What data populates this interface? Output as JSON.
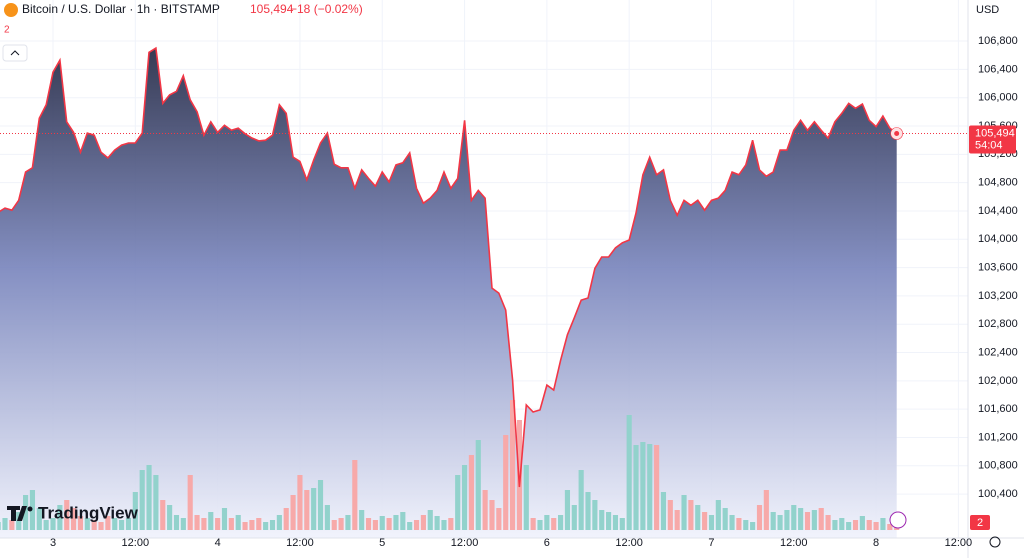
{
  "chart_data": {
    "type": "area",
    "title": "Bitcoin / U.S. Dollar · 1h · BITSTAMP",
    "last_price": "105,494",
    "change": "−18 (−0.02%)",
    "indicator_count": "2",
    "countdown": "54:04",
    "currency": "USD",
    "alert_count": "2",
    "brand": "TradingView",
    "x": [
      -8,
      -7,
      -6,
      -5,
      -4,
      -3,
      -2,
      -1,
      0,
      1,
      2,
      3,
      4,
      5,
      6,
      7,
      8,
      9,
      10,
      11,
      12,
      13,
      14,
      15,
      16,
      17,
      18,
      19,
      20,
      21,
      22,
      23,
      24,
      25,
      26,
      27,
      28,
      29,
      30,
      31,
      32,
      33,
      34,
      35,
      36,
      37,
      38,
      39,
      40,
      41,
      42,
      43,
      44,
      45,
      46,
      47,
      48,
      49,
      50,
      51,
      52,
      53,
      54,
      55,
      56,
      57,
      58,
      59,
      60,
      61,
      62,
      63,
      64,
      65,
      66,
      67,
      68,
      69,
      70,
      71,
      72,
      73,
      74,
      75,
      76,
      77,
      78,
      79,
      80,
      81,
      82,
      83,
      84,
      85,
      86,
      87,
      88,
      89,
      90,
      91,
      92,
      93,
      94,
      95,
      96,
      97,
      98,
      99,
      100,
      101,
      102,
      103,
      104,
      105,
      106,
      107,
      108,
      109,
      110,
      111,
      112,
      113,
      114,
      115,
      116,
      117,
      118,
      119,
      120,
      121,
      122,
      123
    ],
    "series": [
      {
        "name": "Price",
        "color": "#f23645",
        "values": [
          104380,
          104440,
          104410,
          104550,
          104950,
          105010,
          105710,
          105900,
          106360,
          106530,
          105660,
          105510,
          105230,
          105500,
          105470,
          105230,
          105150,
          105260,
          105330,
          105360,
          105360,
          105500,
          106640,
          106700,
          105920,
          106040,
          106090,
          106310,
          105970,
          105800,
          105470,
          105660,
          105510,
          105610,
          105540,
          105570,
          105490,
          105430,
          105390,
          105400,
          105470,
          105900,
          105780,
          105160,
          105100,
          104840,
          105120,
          105360,
          105500,
          105060,
          105010,
          105010,
          104720,
          104980,
          104860,
          104750,
          104950,
          104810,
          105050,
          105080,
          105220,
          104720,
          104510,
          104580,
          104690,
          104950,
          104720,
          104860,
          105680,
          104550,
          104690,
          104580,
          103310,
          103240,
          103000,
          102010,
          100500,
          101660,
          101560,
          101590,
          101940,
          101870,
          102290,
          102650,
          102890,
          103140,
          103170,
          103590,
          103750,
          103750,
          103880,
          103950,
          103990,
          104370,
          104910,
          105160,
          104910,
          104980,
          104550,
          104340,
          104550,
          104480,
          104550,
          104410,
          104550,
          104580,
          104690,
          104950,
          104910,
          105050,
          105400,
          104980,
          104890,
          104950,
          105260,
          105260,
          105540,
          105680,
          105540,
          105660,
          105540,
          105430,
          105660,
          105780,
          105920,
          105850,
          105910,
          105680,
          105590,
          105740,
          105570,
          105494
        ]
      },
      {
        "name": "Volume",
        "up_color": "#92d2cc",
        "down_color": "#f7a9a9",
        "values": [
          8,
          12,
          10,
          18,
          35,
          40,
          22,
          10,
          12,
          25,
          30,
          22,
          14,
          12,
          10,
          8,
          14,
          12,
          10,
          12,
          38,
          60,
          65,
          55,
          30,
          25,
          15,
          12,
          55,
          15,
          12,
          18,
          12,
          22,
          12,
          15,
          8,
          10,
          12,
          8,
          10,
          15,
          22,
          35,
          55,
          40,
          42,
          50,
          25,
          10,
          12,
          15,
          70,
          20,
          12,
          10,
          14,
          12,
          15,
          18,
          8,
          10,
          15,
          20,
          14,
          10,
          12,
          55,
          65,
          75,
          90,
          40,
          30,
          22,
          95,
          130,
          110,
          65,
          12,
          10,
          15,
          12,
          15,
          40,
          25,
          60,
          38,
          30,
          20,
          18,
          15,
          12,
          115,
          85,
          88,
          86,
          85,
          38,
          30,
          20,
          35,
          30,
          25,
          18,
          15,
          30,
          22,
          15,
          12,
          10,
          8,
          25,
          40,
          18,
          15,
          20,
          25,
          22,
          18,
          20,
          22,
          15,
          10,
          12,
          8,
          10,
          14,
          10,
          8,
          12,
          6,
          8
        ]
      }
    ],
    "xlim": [
      -7.73,
      133.4
    ],
    "xticks": [
      {
        "value": 0,
        "label": "3"
      },
      {
        "value": 12,
        "label": "12:00"
      },
      {
        "value": 24,
        "label": "4"
      },
      {
        "value": 36,
        "label": "12:00"
      },
      {
        "value": 48,
        "label": "5"
      },
      {
        "value": 60,
        "label": "12:00"
      },
      {
        "value": 72,
        "label": "6"
      },
      {
        "value": 84,
        "label": "12:00"
      },
      {
        "value": 96,
        "label": "7"
      },
      {
        "value": 108,
        "label": "12:00"
      },
      {
        "value": 120,
        "label": "8"
      },
      {
        "value": 132,
        "label": "12:00"
      }
    ],
    "ylim": [
      99780,
      107380
    ],
    "yticks": [
      {
        "value": 100400,
        "label": "100,400"
      },
      {
        "value": 100800,
        "label": "100,800"
      },
      {
        "value": 101200,
        "label": "101,200"
      },
      {
        "value": 101600,
        "label": "101,600"
      },
      {
        "value": 102000,
        "label": "102,000"
      },
      {
        "value": 102400,
        "label": "102,400"
      },
      {
        "value": 102800,
        "label": "102,800"
      },
      {
        "value": 103200,
        "label": "103,200"
      },
      {
        "value": 103600,
        "label": "103,600"
      },
      {
        "value": 104000,
        "label": "104,000"
      },
      {
        "value": 104400,
        "label": "104,400"
      },
      {
        "value": 104800,
        "label": "104,800"
      },
      {
        "value": 105200,
        "label": "105,200"
      },
      {
        "value": 105600,
        "label": "105,600"
      },
      {
        "value": 106000,
        "label": "106,000"
      },
      {
        "value": 106400,
        "label": "106,400"
      },
      {
        "value": 106800,
        "label": "106,800"
      }
    ],
    "grid": true
  }
}
